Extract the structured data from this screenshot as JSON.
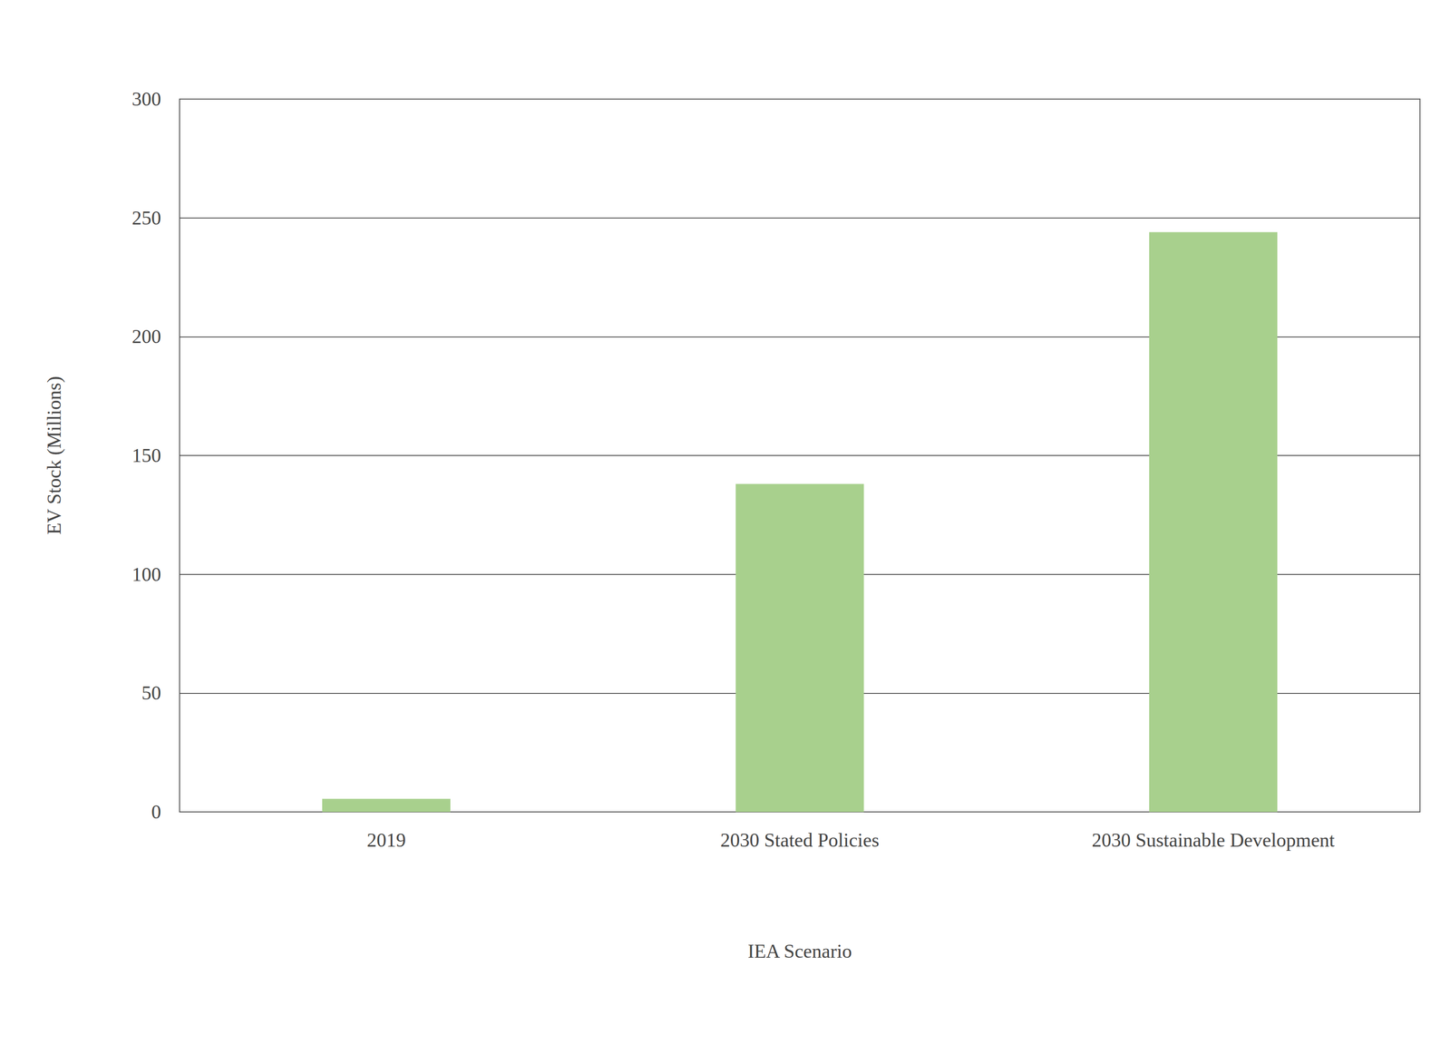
{
  "chart_data": {
    "type": "bar",
    "xlabel": "IEA Scenario",
    "ylabel": "EV Stock (Millions)",
    "categories": [
      "2019",
      "2030 Stated Policies",
      "2030 Sustainable Development"
    ],
    "values": [
      5.5,
      138,
      244
    ],
    "color": "#a8d08d",
    "ylim": [
      0,
      300
    ],
    "yticks": [
      0,
      50,
      100,
      150,
      200,
      250,
      300
    ],
    "grid": true
  }
}
